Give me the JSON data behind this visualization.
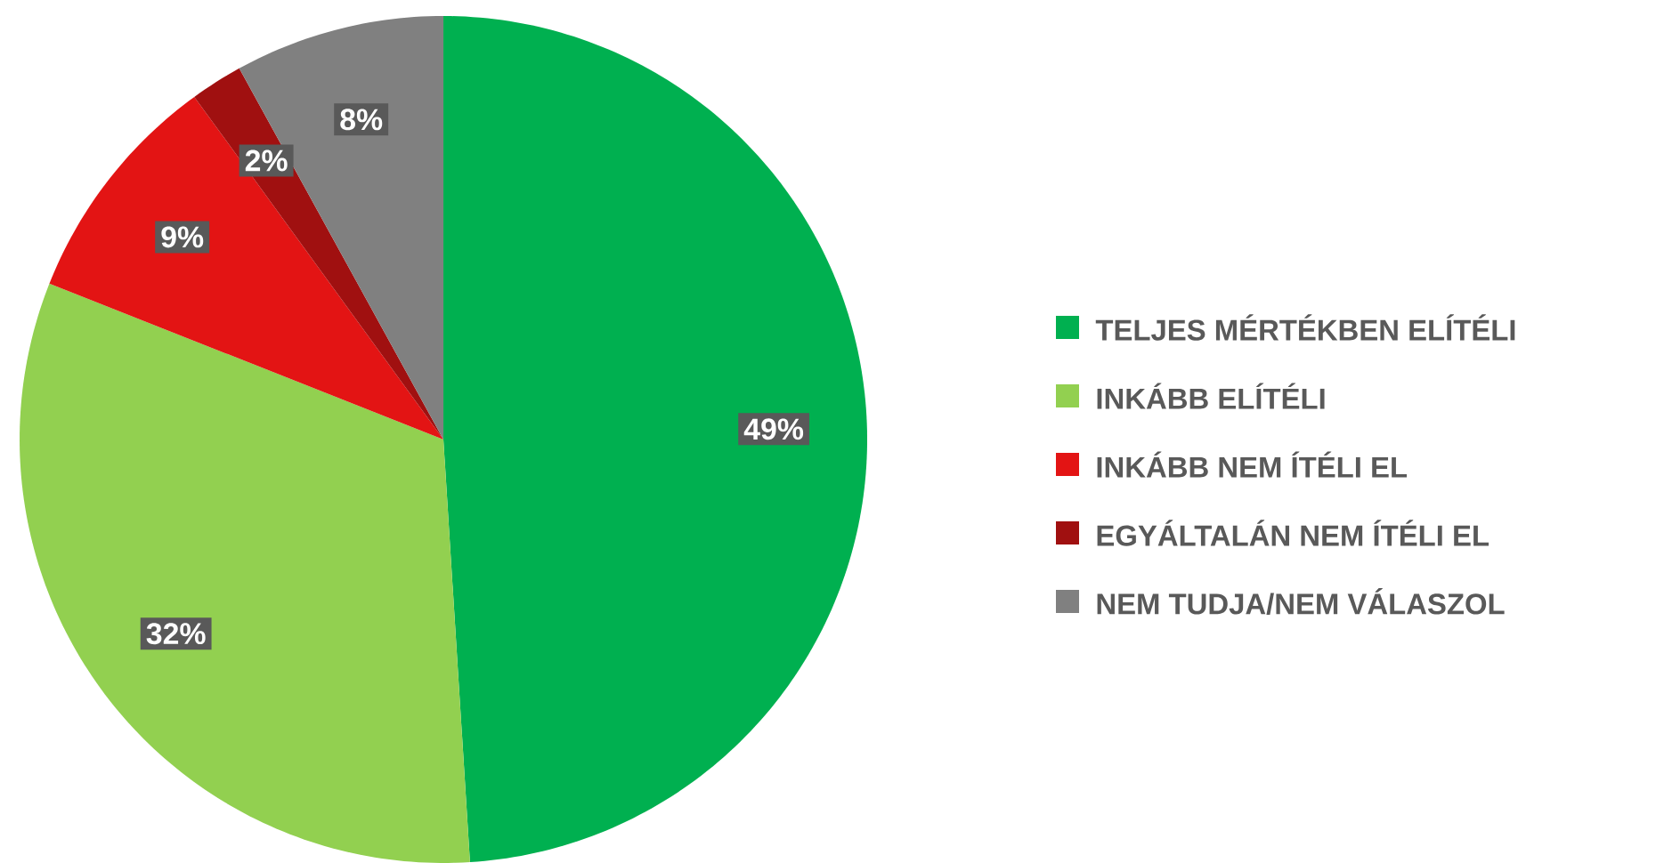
{
  "chart_data": {
    "type": "pie",
    "categories": [
      "TELJES MÉRTÉKBEN ELÍTÉLI",
      "INKÁBB ELÍTÉLI",
      "INKÁBB NEM ÍTÉLI EL",
      "EGYÁLTALÁN NEM ÍTÉLI EL",
      "NEM TUDJA/NEM VÁLASZOL"
    ],
    "values": [
      49,
      32,
      9,
      2,
      8
    ],
    "colors": [
      "#00b050",
      "#92d050",
      "#e31414",
      "#a01010",
      "#808080"
    ],
    "value_labels": [
      "49%",
      "32%",
      "9%",
      "2%",
      "8%"
    ],
    "legend": "right"
  }
}
